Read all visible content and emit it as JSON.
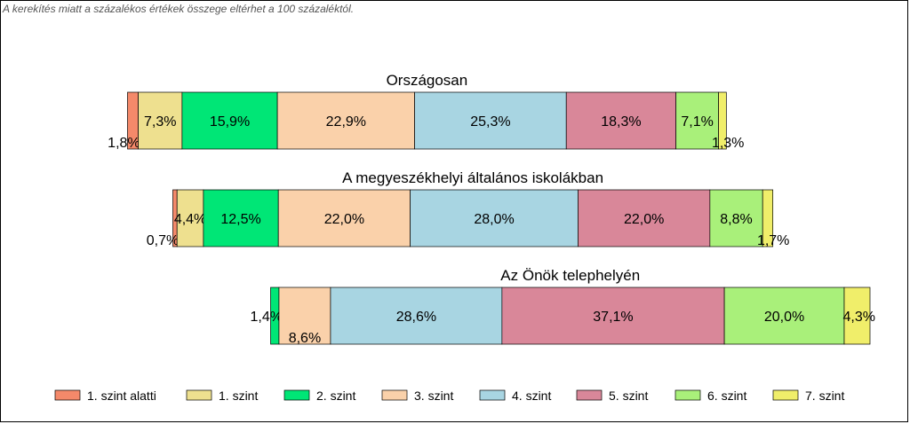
{
  "note": "A kerekítés miatt a  százalékos értékek összege eltérhet a 100 százaléktól.",
  "chart_data": {
    "type": "bar",
    "orientation": "horizontal-stacked",
    "legend_position": "bottom",
    "categories": [
      "1. szint alatti",
      "1. szint",
      "2. szint",
      "3. szint",
      "4. szint",
      "5. szint",
      "6. szint",
      "7. szint"
    ],
    "colors": [
      "#f4896a",
      "#eee08f",
      "#00e676",
      "#fad1aa",
      "#a8d5e2",
      "#d98799",
      "#a9f07a",
      "#f0ee6a"
    ],
    "series": [
      {
        "name": "Országosan",
        "values": [
          1.8,
          7.3,
          15.9,
          22.9,
          25.3,
          18.3,
          7.1,
          1.3
        ],
        "labels": [
          "1,8%",
          "7,3%",
          "15,9%",
          "22,9%",
          "25,3%",
          "18,3%",
          "7,1%",
          "1,3%"
        ]
      },
      {
        "name": "A megyeszékhelyi általános iskolákban",
        "values": [
          0.7,
          4.4,
          12.5,
          22.0,
          28.0,
          22.0,
          8.8,
          1.7
        ],
        "labels": [
          "0,7%",
          "4,4%",
          "12,5%",
          "22,0%",
          "28,0%",
          "22,0%",
          "8,8%",
          "1,7%"
        ]
      },
      {
        "name": "Az Önök telephelyén",
        "values": [
          0.0,
          0.0,
          1.4,
          8.6,
          28.6,
          37.1,
          20.0,
          4.3
        ],
        "labels": [
          "",
          "",
          "1,4%",
          "8,6%",
          "28,6%",
          "37,1%",
          "20,0%",
          "4,3%"
        ]
      }
    ]
  }
}
